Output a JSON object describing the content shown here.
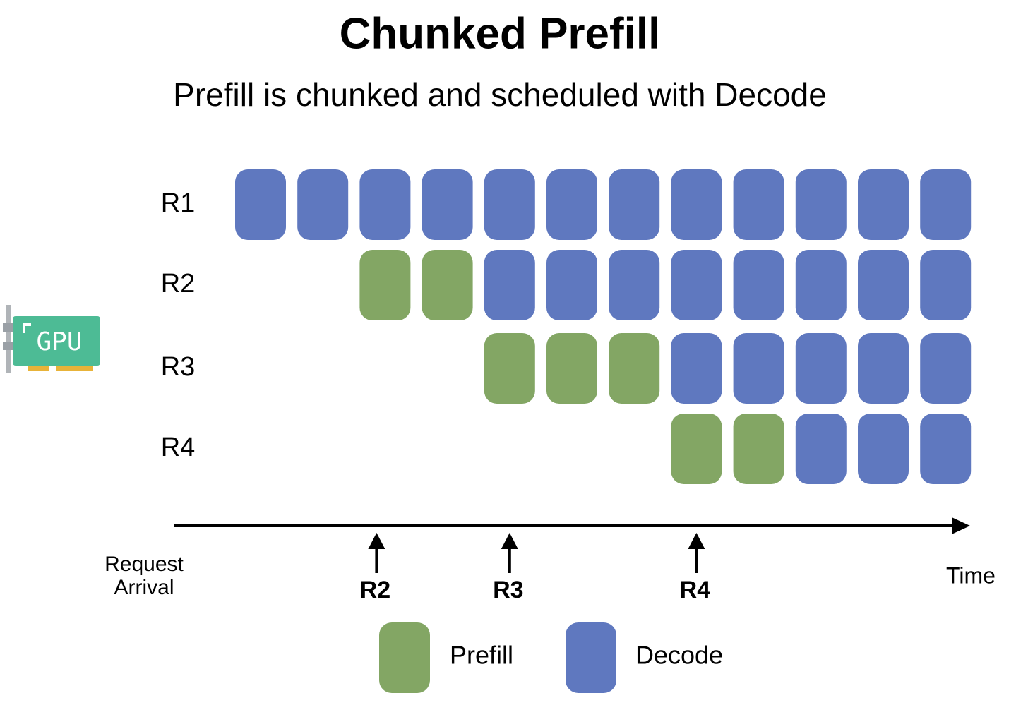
{
  "header": {
    "title": "Chunked Prefill",
    "subtitle": "Prefill is chunked and scheduled with Decode"
  },
  "icon_label": "GPU",
  "rows": [
    {
      "label": "R1",
      "slots": [
        "decode",
        "decode",
        "decode",
        "decode",
        "decode",
        "decode",
        "decode",
        "decode",
        "decode",
        "decode",
        "decode",
        "decode"
      ]
    },
    {
      "label": "R2",
      "slots": [
        null,
        null,
        "prefill",
        "prefill",
        "decode",
        "decode",
        "decode",
        "decode",
        "decode",
        "decode",
        "decode",
        "decode"
      ]
    },
    {
      "label": "R3",
      "slots": [
        null,
        null,
        null,
        null,
        "prefill",
        "prefill",
        "prefill",
        "decode",
        "decode",
        "decode",
        "decode",
        "decode"
      ]
    },
    {
      "label": "R4",
      "slots": [
        null,
        null,
        null,
        null,
        null,
        null,
        null,
        "prefill",
        "prefill",
        "decode",
        "decode",
        "decode"
      ]
    }
  ],
  "axis": {
    "arrival_label": [
      "Request",
      "Arrival"
    ],
    "time_label": "Time",
    "arrivals": [
      "R2",
      "R3",
      "R4"
    ]
  },
  "legend": [
    {
      "key": "prefill",
      "label": "Prefill",
      "color": "#83a664"
    },
    {
      "key": "decode",
      "label": "Decode",
      "color": "#5f78bf"
    }
  ]
}
